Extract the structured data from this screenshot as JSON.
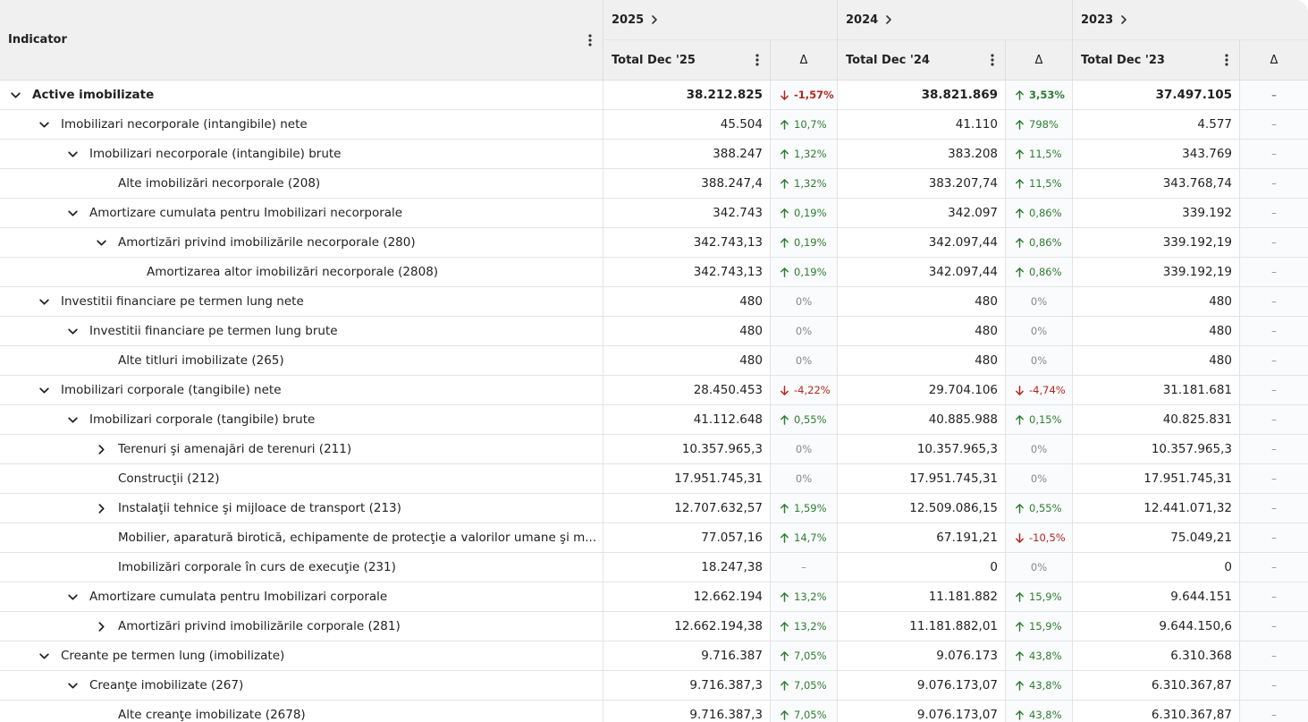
{
  "header": {
    "indicator": "Indicator",
    "groups": [
      "2025",
      "2024",
      "2023"
    ],
    "columns": [
      "Total Dec '25",
      "Δ",
      "Total Dec '24",
      "Δ",
      "Total Dec '23",
      "Δ"
    ]
  },
  "table": {
    "rows": [
      {
        "label": "Active imobilizate",
        "level": 0,
        "toggle": "open",
        "bold": true,
        "cells": [
          "38.212.825",
          "-1,57%",
          "38.821.869",
          "3,53%",
          "37.497.105",
          "–"
        ]
      },
      {
        "label": "Imobilizari necorporale (intangibile) nete",
        "level": 1,
        "toggle": "open",
        "cells": [
          "45.504",
          "10,7%",
          "41.110",
          "798%",
          "4.577",
          "–"
        ]
      },
      {
        "label": "Imobilizari necorporale (intangibile) brute",
        "level": 2,
        "toggle": "open",
        "cells": [
          "388.247",
          "1,32%",
          "383.208",
          "11,5%",
          "343.769",
          "–"
        ]
      },
      {
        "label": "Alte imobilizări necorporale (208)",
        "level": 3,
        "cells": [
          "388.247,4",
          "1,32%",
          "383.207,74",
          "11,5%",
          "343.768,74",
          "–"
        ]
      },
      {
        "label": "Amortizare cumulata pentru Imobilizari necorporale",
        "level": 2,
        "toggle": "open",
        "cells": [
          "342.743",
          "0,19%",
          "342.097",
          "0,86%",
          "339.192",
          "–"
        ]
      },
      {
        "label": "Amortizări privind imobilizările necorporale (280)",
        "level": 3,
        "toggle": "open",
        "cells": [
          "342.743,13",
          "0,19%",
          "342.097,44",
          "0,86%",
          "339.192,19",
          "–"
        ]
      },
      {
        "label": "Amortizarea altor imobilizări necorporale (2808)",
        "level": 4,
        "cells": [
          "342.743,13",
          "0,19%",
          "342.097,44",
          "0,86%",
          "339.192,19",
          "–"
        ]
      },
      {
        "label": "Investitii financiare pe termen lung nete",
        "level": 1,
        "toggle": "open",
        "cells": [
          "480",
          "0%",
          "480",
          "0%",
          "480",
          "–"
        ]
      },
      {
        "label": "Investitii financiare pe termen lung brute",
        "level": 2,
        "toggle": "open",
        "cells": [
          "480",
          "0%",
          "480",
          "0%",
          "480",
          "–"
        ]
      },
      {
        "label": "Alte titluri imobilizate (265)",
        "level": 3,
        "cells": [
          "480",
          "0%",
          "480",
          "0%",
          "480",
          "–"
        ]
      },
      {
        "label": "Imobilizari corporale (tangibile) nete",
        "level": 1,
        "toggle": "open",
        "cells": [
          "28.450.453",
          "-4,22%",
          "29.704.106",
          "-4,74%",
          "31.181.681",
          "–"
        ]
      },
      {
        "label": "Imobilizari corporale (tangibile) brute",
        "level": 2,
        "toggle": "open",
        "cells": [
          "41.112.648",
          "0,55%",
          "40.885.988",
          "0,15%",
          "40.825.831",
          "–"
        ]
      },
      {
        "label": "Terenuri şi amenajări de terenuri (211)",
        "level": 3,
        "toggle": "closed",
        "cells": [
          "10.357.965,3",
          "0%",
          "10.357.965,3",
          "0%",
          "10.357.965,3",
          "–"
        ]
      },
      {
        "label": "Construcţii (212)",
        "level": 3,
        "cells": [
          "17.951.745,31",
          "0%",
          "17.951.745,31",
          "0%",
          "17.951.745,31",
          "–"
        ]
      },
      {
        "label": "Instalaţii tehnice şi mijloace de transport (213)",
        "level": 3,
        "toggle": "closed",
        "cells": [
          "12.707.632,57",
          "1,59%",
          "12.509.086,15",
          "0,55%",
          "12.441.071,32",
          "–"
        ]
      },
      {
        "label": "Mobilier, aparatură birotică, echipamente de protecţie a valorilor umane şi m...",
        "level": 3,
        "cells": [
          "77.057,16",
          "14,7%",
          "67.191,21",
          "-10,5%",
          "75.049,21",
          "–"
        ]
      },
      {
        "label": "Imobilizări corporale în curs de execuţie (231)",
        "level": 3,
        "cells": [
          "18.247,38",
          "–",
          "0",
          "0%",
          "0",
          "–"
        ]
      },
      {
        "label": "Amortizare cumulata pentru Imobilizari corporale",
        "level": 2,
        "toggle": "open",
        "cells": [
          "12.662.194",
          "13,2%",
          "11.181.882",
          "15,9%",
          "9.644.151",
          "–"
        ]
      },
      {
        "label": "Amortizări privind imobilizările corporale (281)",
        "level": 3,
        "toggle": "closed",
        "cells": [
          "12.662.194,38",
          "13,2%",
          "11.181.882,01",
          "15,9%",
          "9.644.150,6",
          "–"
        ]
      },
      {
        "label": "Creante pe termen lung (imobilizate)",
        "level": 1,
        "toggle": "open",
        "cells": [
          "9.716.387",
          "7,05%",
          "9.076.173",
          "43,8%",
          "6.310.368",
          "–"
        ]
      },
      {
        "label": "Creanţe imobilizate (267)",
        "level": 2,
        "toggle": "open",
        "cells": [
          "9.716.387,3",
          "7,05%",
          "9.076.173,07",
          "43,8%",
          "6.310.367,87",
          "–"
        ]
      },
      {
        "label": "Alte creanţe imobilizate (2678)",
        "level": 3,
        "cells": [
          "9.716.387,3",
          "7,05%",
          "9.076.173,07",
          "43,8%",
          "6.310.367,87",
          "–"
        ]
      }
    ]
  }
}
